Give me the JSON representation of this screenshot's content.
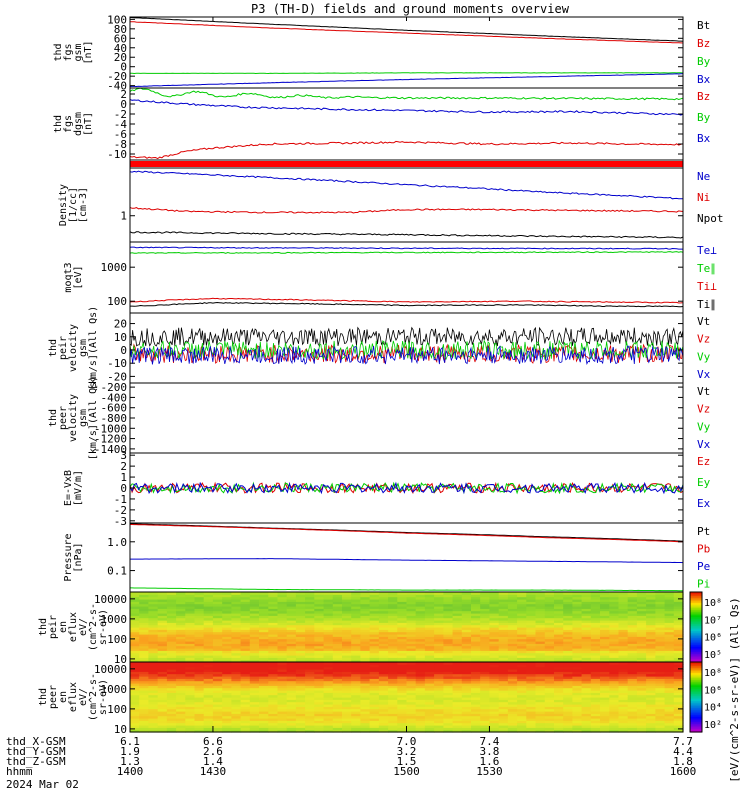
{
  "chart_data": {
    "type": "line",
    "title": "P3 (TH-D) fields and ground moments overview",
    "xlim": [
      1400,
      1600
    ],
    "panels": [
      {
        "id": "fgs-gsm",
        "ylabel": [
          "thd",
          "fgs",
          "gsm",
          "[nT]"
        ],
        "yticks": [
          -40,
          -20,
          0,
          20,
          40,
          60,
          80,
          100
        ],
        "ylim": [
          -45,
          105
        ],
        "ylog": false,
        "series": [
          {
            "name": "Bt",
            "color": "#000000",
            "x": [
              1400,
              1450,
              1500,
              1550,
              1600
            ],
            "values": [
              104,
              90,
              77,
              65,
              54
            ]
          },
          {
            "name": "Bz",
            "color": "#dd0000",
            "x": [
              1400,
              1450,
              1500,
              1550,
              1600
            ],
            "values": [
              95,
              82,
              71,
              60,
              50
            ]
          },
          {
            "name": "By",
            "color": "#00cc00",
            "x": [
              1400,
              1450,
              1500,
              1550,
              1600
            ],
            "values": [
              -14,
              -14,
              -13,
              -13,
              -13
            ]
          },
          {
            "name": "Bx",
            "color": "#0000cc",
            "x": [
              1400,
              1450,
              1500,
              1550,
              1600
            ],
            "values": [
              -42,
              -34,
              -27,
              -21,
              -15
            ]
          }
        ]
      },
      {
        "id": "fgs-dgsm",
        "ylabel": [
          "thd",
          "fgs",
          "dgsm",
          "[nT]"
        ],
        "yticks": [
          -10,
          -8,
          -6,
          -4,
          -2,
          0,
          2
        ],
        "ylim": [
          -11.2,
          3.2
        ],
        "ylog": false,
        "series": [
          {
            "name": "Bz",
            "color": "#dd0000",
            "x": [
              1400,
              1410,
              1420,
              1430,
              1450,
              1480,
              1500,
              1530,
              1560,
              1580,
              1600
            ],
            "values": [
              -10.6,
              -10.8,
              -9.5,
              -8.8,
              -8.0,
              -7.8,
              -7.6,
              -8.0,
              -7.8,
              -8.0,
              -8.1
            ]
          },
          {
            "name": "By",
            "color": "#00cc00",
            "x": [
              1400,
              1420,
              1440,
              1470,
              1500,
              1530,
              1560,
              1600
            ],
            "values": [
              2.5,
              2.0,
              1.8,
              1.4,
              1.2,
              1.2,
              1.1,
              1.0
            ]
          },
          {
            "name": "Bx",
            "color": "#0000cc",
            "x": [
              1400,
              1420,
              1440,
              1470,
              1500,
              1530,
              1560,
              1600
            ],
            "values": [
              0.8,
              0,
              -0.6,
              -1.0,
              -1.3,
              -1.6,
              -1.5,
              -2.1
            ]
          }
        ]
      },
      {
        "id": "flags",
        "ylabel": [],
        "yticks": [],
        "ylim": [
          0,
          1
        ],
        "ylog": false,
        "series": [
          {
            "name": "",
            "color": "#ff0000",
            "x": [
              1400,
              1600
            ],
            "values": [
              0.5,
              0.5
            ]
          }
        ]
      },
      {
        "id": "density",
        "ylabel": [
          "Density",
          "[1/cc]",
          "[cm-3]"
        ],
        "yticks": [
          1
        ],
        "yticklabels": [
          "1"
        ],
        "ylim": [
          0.33,
          7.5
        ],
        "ylog": true,
        "series": [
          {
            "name": "Ne",
            "color": "#0000cc",
            "x": [
              1400,
              1450,
              1500,
              1550,
              1600
            ],
            "values": [
              6.5,
              5.0,
              3.7,
              2.7,
              2.05
            ]
          },
          {
            "name": "Ni",
            "color": "#dd0000",
            "x": [
              1400,
              1420,
              1450,
              1480,
              1500,
              1530,
              1560,
              1600
            ],
            "values": [
              1.4,
              1.2,
              1.15,
              1.15,
              1.3,
              1.3,
              1.25,
              1.2
            ]
          },
          {
            "name": "Npot",
            "color": "#000000",
            "x": [
              1400,
              1450,
              1500,
              1550,
              1600
            ],
            "values": [
              0.5,
              0.47,
              0.45,
              0.42,
              0.4
            ]
          }
        ]
      },
      {
        "id": "moms-temp",
        "ylabel": [
          "moqt3",
          "[eV]"
        ],
        "yticks": [
          100,
          1000
        ],
        "yticklabels": [
          "100",
          "1000"
        ],
        "ylim": [
          45,
          5500
        ],
        "ylog": true,
        "series": [
          {
            "name": "Te⊥",
            "color": "#0000cc",
            "x": [
              1400,
              1500,
              1600
            ],
            "values": [
              3800,
              3600,
              3500
            ]
          },
          {
            "name": "Te∥",
            "color": "#00cc00",
            "x": [
              1400,
              1500,
              1600
            ],
            "values": [
              2600,
              2700,
              2800
            ]
          },
          {
            "name": "Ti⊥",
            "color": "#dd0000",
            "x": [
              1400,
              1430,
              1460,
              1500,
              1540,
              1570,
              1600
            ],
            "values": [
              95,
              120,
              110,
              95,
              100,
              95,
              90
            ]
          },
          {
            "name": "Ti∥",
            "color": "#000000",
            "x": [
              1400,
              1430,
              1460,
              1500,
              1540,
              1570,
              1600
            ],
            "values": [
              70,
              90,
              85,
              75,
              78,
              72,
              70
            ]
          }
        ]
      },
      {
        "id": "peir-velocity",
        "ylabel": [
          "thd",
          "peir",
          "velocity",
          "gsm",
          "[km/s](All Qs)"
        ],
        "yticks": [
          -20,
          -10,
          0,
          10,
          20
        ],
        "ylim": [
          -25,
          28
        ],
        "ylog": false,
        "series": [
          {
            "name": "Vt",
            "color": "#000000",
            "x": [
              1400,
              1500,
              1600
            ],
            "values": [
              10,
              10,
              10
            ]
          },
          {
            "name": "Vz",
            "color": "#dd0000",
            "x": [
              1400,
              1500,
              1600
            ],
            "values": [
              -3,
              -3,
              -3
            ]
          },
          {
            "name": "Vy",
            "color": "#00cc00",
            "x": [
              1400,
              1500,
              1600
            ],
            "values": [
              0,
              0,
              0
            ]
          },
          {
            "name": "Vx",
            "color": "#0000cc",
            "x": [
              1400,
              1500,
              1600
            ],
            "values": [
              -4,
              -4,
              -4
            ]
          }
        ]
      },
      {
        "id": "peer-velocity",
        "ylabel": [
          "thd",
          "peer",
          "velocity",
          "gsm",
          "[km/s](All Qs)"
        ],
        "yticks": [
          -1400,
          -1200,
          -1000,
          -800,
          -600,
          -400,
          -200
        ],
        "ylim": [
          -1480,
          -120
        ],
        "ylog": false,
        "series": [
          {
            "name": "Vt",
            "color": "#000000",
            "x": [],
            "values": []
          },
          {
            "name": "Vz",
            "color": "#dd0000",
            "x": [],
            "values": []
          },
          {
            "name": "Vy",
            "color": "#00cc00",
            "x": [],
            "values": []
          },
          {
            "name": "Vx",
            "color": "#0000cc",
            "x": [],
            "values": []
          }
        ]
      },
      {
        "id": "efield",
        "ylabel": [
          "E=-VxB",
          "[mV/m]"
        ],
        "yticks": [
          -3,
          -2,
          -1,
          0,
          1,
          2,
          3
        ],
        "ylim": [
          -3.2,
          3.2
        ],
        "ylog": false,
        "series": [
          {
            "name": "Ez",
            "color": "#dd0000",
            "x": [
              1400,
              1500,
              1600
            ],
            "values": [
              0,
              0,
              0
            ]
          },
          {
            "name": "Ey",
            "color": "#00cc00",
            "x": [
              1400,
              1500,
              1600
            ],
            "values": [
              0,
              0,
              0
            ]
          },
          {
            "name": "Ex",
            "color": "#0000cc",
            "x": [
              1400,
              1500,
              1600
            ],
            "values": [
              0,
              0,
              0
            ]
          }
        ]
      },
      {
        "id": "pressure",
        "ylabel": [
          "Pressure",
          "[nPa]"
        ],
        "yticks": [
          0.1,
          1.0
        ],
        "yticklabels": [
          "0.1",
          "1.0"
        ],
        "ylim": [
          0.018,
          4.5
        ],
        "ylog": true,
        "series": [
          {
            "name": "Pt",
            "color": "#000000",
            "x": [
              1400,
              1450,
              1500,
              1550,
              1600
            ],
            "values": [
              4.2,
              3.0,
              2.1,
              1.5,
              1.05
            ]
          },
          {
            "name": "Pb",
            "color": "#dd0000",
            "x": [
              1400,
              1450,
              1500,
              1550,
              1600
            ],
            "values": [
              4.0,
              2.9,
              2.0,
              1.4,
              1.0
            ]
          },
          {
            "name": "Pe",
            "color": "#0000cc",
            "x": [
              1400,
              1450,
              1500,
              1550,
              1600
            ],
            "values": [
              0.25,
              0.26,
              0.23,
              0.21,
              0.19
            ]
          },
          {
            "name": "Pi",
            "color": "#00cc00",
            "x": [
              1400,
              1450,
              1500,
              1550,
              1600
            ],
            "values": [
              0.025,
              0.022,
              0.021,
              0.021,
              0.02
            ]
          }
        ]
      },
      {
        "id": "peir-en-eflux",
        "type": "heatmap",
        "ylabel": [
          "thd",
          "peir",
          "en",
          "eflux",
          "eV/",
          "(cm^2-s-",
          "sr-eV)"
        ],
        "yticks": [
          10,
          100,
          1000,
          10000
        ],
        "yticklabels": [
          "10",
          "100",
          "1000",
          "10000"
        ],
        "ylim": [
          7,
          22000
        ],
        "ylog": true
      },
      {
        "id": "peer-en-eflux",
        "type": "heatmap",
        "ylabel": [
          "thd",
          "peer",
          "en",
          "eflux",
          "eV/",
          "(cm^2-s-",
          "sr-eV)"
        ],
        "yticks": [
          10,
          100,
          1000,
          10000
        ],
        "yticklabels": [
          "10",
          "100",
          "1000",
          "10000"
        ],
        "ylim": [
          7,
          22000
        ],
        "ylog": true
      }
    ],
    "colorbars": [
      {
        "panel": "peir-en-eflux",
        "ticks": [
          "10^8",
          "10^7",
          "10^6",
          "10^5"
        ]
      },
      {
        "panel": "peer-en-eflux",
        "ticks": [
          "10^8",
          "10^6",
          "10^4",
          "10^2"
        ]
      }
    ],
    "colorbar_label": "[eV/(cm^2-s-sr-eV)]",
    "colorbar_label2": "(All Qs)",
    "x_axis_rows": [
      {
        "label": "thd_X-GSM",
        "values": [
          "6.1",
          "6.6",
          "7.0",
          "7.4",
          "7.7"
        ]
      },
      {
        "label": "thd_Y-GSM",
        "values": [
          "1.9",
          "2.6",
          "3.2",
          "3.8",
          "4.4"
        ]
      },
      {
        "label": "thd_Z-GSM",
        "values": [
          "1.3",
          "1.4",
          "1.5",
          "1.6",
          "1.8"
        ]
      },
      {
        "label": "hhmm",
        "values": [
          "1400",
          "1430",
          "1500",
          "1530",
          "1600"
        ]
      }
    ],
    "date_label": "2024 Mar 02"
  }
}
